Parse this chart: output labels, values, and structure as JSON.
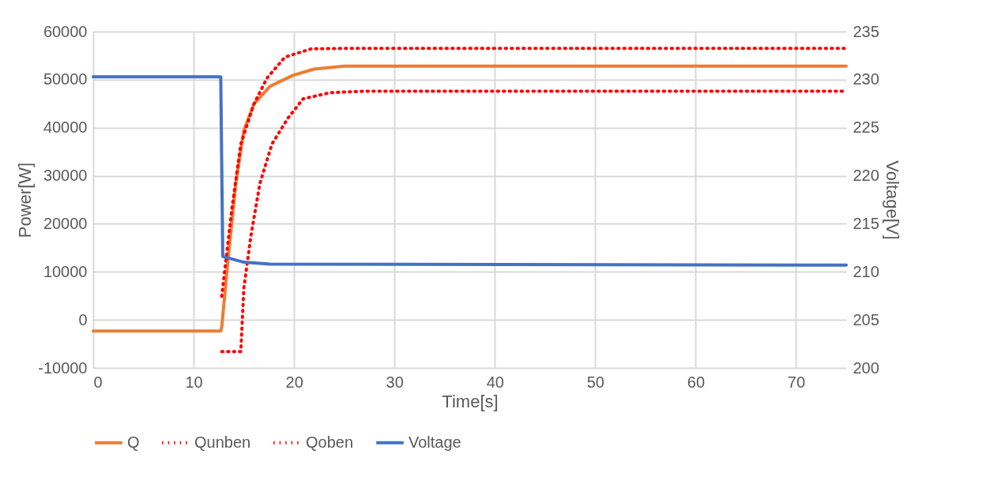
{
  "chart_data": {
    "type": "line",
    "xlabel": "Time[s]",
    "ylabel": "Power[W]",
    "y2label": "Voltage[V]",
    "xlim": [
      0,
      75
    ],
    "xticks": [
      0,
      10,
      20,
      30,
      40,
      50,
      60,
      70
    ],
    "ylim": [
      -10000,
      60000
    ],
    "yticks": [
      -10000,
      0,
      10000,
      20000,
      30000,
      40000,
      50000,
      60000
    ],
    "y2lim": [
      200,
      235
    ],
    "y2ticks": [
      200,
      205,
      210,
      215,
      220,
      225,
      230,
      235
    ],
    "grid": true,
    "legend": "bottom",
    "series": [
      {
        "name": "Q",
        "color": "#ed7d31",
        "line_style": "solid",
        "x": [
          0,
          12.7,
          12.8,
          13.4,
          14.2,
          15.0,
          16.0,
          17.6,
          19.9,
          22,
          25,
          75
        ],
        "values": [
          -2300,
          -2300,
          -1500,
          12000,
          28400,
          39400,
          44900,
          48600,
          50900,
          52200,
          52800,
          52800
        ]
      },
      {
        "name": "Qunben",
        "color": "#ff0000",
        "line_style": "dotted",
        "x": [
          12.8,
          13.8,
          14.7,
          16.0,
          17.3,
          19.1,
          21.7,
          25,
          75
        ],
        "values": [
          4900,
          23000,
          36600,
          44900,
          50300,
          54700,
          56400,
          56500,
          56500
        ]
      },
      {
        "name": "Qoben",
        "color": "#ff0000",
        "line_style": "dotted",
        "x": [
          12.8,
          14.7,
          15.0,
          15.7,
          16.6,
          17.8,
          19.4,
          20.9,
          23.6,
          27,
          75
        ],
        "values": [
          -6600,
          -6600,
          6600,
          17400,
          28400,
          36600,
          42000,
          46000,
          47300,
          47600,
          47600
        ]
      },
      {
        "name": "Voltage",
        "color": "#4472c4",
        "line_style": "solid",
        "axis": "y2",
        "x": [
          0,
          12.7,
          12.9,
          15.0,
          17.6,
          75
        ],
        "values": [
          230.3,
          230.3,
          211.6,
          211.0,
          210.8,
          210.7
        ]
      }
    ]
  }
}
